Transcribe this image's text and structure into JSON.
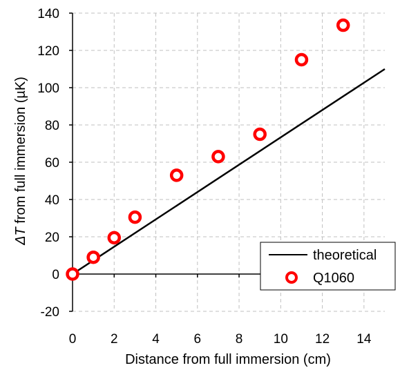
{
  "chart_data": {
    "type": "scatter",
    "xlabel": "Distance from full immersion (cm)",
    "ylabel_symbol": "ΔT",
    "ylabel_rest": " from full immersion (µK)",
    "xlim": [
      0,
      15
    ],
    "ylim": [
      -20,
      140
    ],
    "xticks": [
      0,
      2,
      4,
      6,
      8,
      10,
      12,
      14
    ],
    "yticks": [
      -20,
      0,
      20,
      40,
      60,
      80,
      100,
      120,
      140
    ],
    "grid": true,
    "legend_position": "bottom-right",
    "series": [
      {
        "name": "theoretical",
        "kind": "line",
        "color": "#000000",
        "x": [
          0,
          15
        ],
        "y": [
          0,
          110
        ]
      },
      {
        "name": "Q1060",
        "kind": "marker",
        "color": "#ff0000",
        "x": [
          0,
          1,
          2,
          3,
          5,
          7,
          9,
          11,
          13
        ],
        "y": [
          0,
          9,
          19.5,
          30.5,
          53,
          63,
          75,
          115,
          133.5
        ]
      }
    ]
  }
}
